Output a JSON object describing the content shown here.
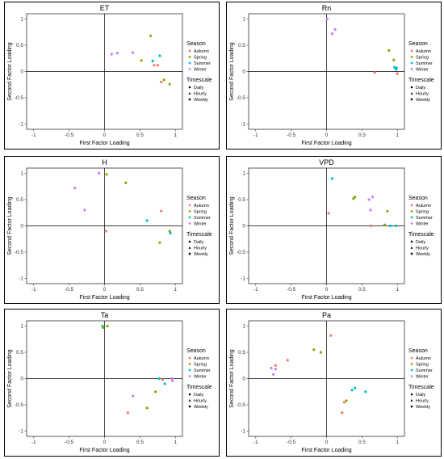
{
  "legend": {
    "season_title": "Season",
    "timescale_title": "Timescale",
    "seasons": [
      {
        "name": "Autumn",
        "color": "#F8766D"
      },
      {
        "name": "Spring",
        "color": "#7CAE00"
      },
      {
        "name": "Summer",
        "color": "#00BFC4"
      },
      {
        "name": "Winter",
        "color": "#C77CFF"
      }
    ],
    "timescales": [
      "Daily",
      "Hourly",
      "Weekly"
    ]
  },
  "chart_data": [
    {
      "type": "scatter",
      "title": "ET",
      "xlabel": "First Factor Loading",
      "ylabel": "Second Factor Loading",
      "xlim": [
        -1.1,
        1.1
      ],
      "ylim": [
        -1.1,
        1.1
      ],
      "xticks": [
        "-1",
        "-0.5",
        "0",
        "0.5",
        "1"
      ],
      "xtick_values": [
        -1,
        -0.5,
        0,
        0.5,
        1
      ],
      "yticks": [
        "-1",
        "-0.5",
        "0",
        "0.5",
        "1"
      ],
      "ytick_values": [
        -1,
        -0.5,
        0,
        0.5,
        1
      ],
      "grid": false,
      "legend_position": "right",
      "points": [
        {
          "x": 0.65,
          "y": 0.68,
          "season": "Spring"
        },
        {
          "x": 0.52,
          "y": 0.21,
          "season": "Spring"
        },
        {
          "x": 0.84,
          "y": -0.16,
          "season": "Spring"
        },
        {
          "x": 0.92,
          "y": -0.24,
          "season": "Spring"
        },
        {
          "x": 0.68,
          "y": 0.2,
          "season": "Summer"
        },
        {
          "x": 0.78,
          "y": 0.3,
          "season": "Summer"
        },
        {
          "x": 0.75,
          "y": 0.12,
          "season": "Autumn"
        },
        {
          "x": 0.7,
          "y": 0.12,
          "season": "Autumn"
        },
        {
          "x": 0.8,
          "y": -0.2,
          "season": "Autumn"
        },
        {
          "x": 0.1,
          "y": 0.33,
          "season": "Winter"
        },
        {
          "x": 0.18,
          "y": 0.35,
          "season": "Winter"
        },
        {
          "x": 0.4,
          "y": 0.36,
          "season": "Winter"
        }
      ]
    },
    {
      "type": "scatter",
      "title": "Rn",
      "xlabel": "First Factor Loading",
      "ylabel": "Second Factor Loading",
      "xlim": [
        -1.1,
        1.1
      ],
      "ylim": [
        -1.1,
        1.1
      ],
      "xticks": [
        "-1",
        "-0.5",
        "0",
        "0.5",
        "1"
      ],
      "xtick_values": [
        -1,
        -0.5,
        0,
        0.5,
        1
      ],
      "yticks": [
        "-1",
        "-0.5",
        "0",
        "0.5",
        "1"
      ],
      "ytick_values": [
        -1,
        -0.5,
        0,
        0.5,
        1
      ],
      "grid": false,
      "legend_position": "right",
      "points": [
        {
          "x": 0.01,
          "y": 1.0,
          "season": "Winter"
        },
        {
          "x": 0.08,
          "y": 0.72,
          "season": "Winter"
        },
        {
          "x": 0.12,
          "y": 0.8,
          "season": "Winter"
        },
        {
          "x": 0.88,
          "y": 0.4,
          "season": "Spring"
        },
        {
          "x": 0.95,
          "y": 0.22,
          "season": "Spring"
        },
        {
          "x": 0.96,
          "y": 0.08,
          "season": "Summer"
        },
        {
          "x": 0.98,
          "y": 0.04,
          "season": "Summer"
        },
        {
          "x": 0.99,
          "y": 0.07,
          "season": "Summer"
        },
        {
          "x": 0.68,
          "y": -0.02,
          "season": "Autumn"
        },
        {
          "x": 1.0,
          "y": -0.04,
          "season": "Autumn"
        }
      ]
    },
    {
      "type": "scatter",
      "title": "H",
      "xlabel": "First Factor Loading",
      "ylabel": "Second Factor Loading",
      "xlim": [
        -1.1,
        1.1
      ],
      "ylim": [
        -1.1,
        1.1
      ],
      "xticks": [
        "-1",
        "-0.5",
        "0",
        "0.5",
        "1"
      ],
      "xtick_values": [
        -1,
        -0.5,
        0,
        0.5,
        1
      ],
      "yticks": [
        "-1",
        "-0.5",
        "0",
        "0.5",
        "1"
      ],
      "ytick_values": [
        -1,
        -0.5,
        0,
        0.5,
        1
      ],
      "grid": false,
      "legend_position": "right",
      "points": [
        {
          "x": -0.08,
          "y": 1.0,
          "season": "Winter"
        },
        {
          "x": -0.42,
          "y": 0.72,
          "season": "Winter"
        },
        {
          "x": -0.28,
          "y": 0.3,
          "season": "Winter"
        },
        {
          "x": 0.03,
          "y": 0.98,
          "season": "Spring"
        },
        {
          "x": 0.3,
          "y": 0.82,
          "season": "Spring"
        },
        {
          "x": 0.78,
          "y": -0.32,
          "season": "Spring"
        },
        {
          "x": 0.92,
          "y": -0.1,
          "season": "Spring"
        },
        {
          "x": 0.6,
          "y": 0.1,
          "season": "Summer"
        },
        {
          "x": 0.93,
          "y": -0.14,
          "season": "Summer"
        },
        {
          "x": 0.8,
          "y": 0.28,
          "season": "Autumn"
        },
        {
          "x": 0.02,
          "y": -0.1,
          "season": "Autumn"
        }
      ]
    },
    {
      "type": "scatter",
      "title": "VPD",
      "xlabel": "First Factor Loading",
      "ylabel": "Second Factor Loading",
      "xlim": [
        -1.1,
        1.1
      ],
      "ylim": [
        -1.1,
        1.1
      ],
      "xticks": [
        "-1",
        "-0.5",
        "0",
        "0.5",
        "1"
      ],
      "xtick_values": [
        -1,
        -0.5,
        0,
        0.5,
        1
      ],
      "yticks": [
        "-1",
        "-0.5",
        "0",
        "0.5",
        "1"
      ],
      "ytick_values": [
        -1,
        -0.5,
        0,
        0.5,
        1
      ],
      "grid": false,
      "legend_position": "right",
      "points": [
        {
          "x": 0.08,
          "y": 0.9,
          "season": "Summer"
        },
        {
          "x": 0.38,
          "y": 0.52,
          "season": "Spring"
        },
        {
          "x": 0.4,
          "y": 0.55,
          "season": "Spring"
        },
        {
          "x": 0.82,
          "y": 0.02,
          "season": "Spring"
        },
        {
          "x": 0.86,
          "y": 0.28,
          "season": "Spring"
        },
        {
          "x": 0.6,
          "y": 0.5,
          "season": "Winter"
        },
        {
          "x": 0.65,
          "y": 0.55,
          "season": "Winter"
        },
        {
          "x": 0.62,
          "y": 0.3,
          "season": "Winter"
        },
        {
          "x": 0.03,
          "y": 0.24,
          "season": "Autumn"
        },
        {
          "x": 0.63,
          "y": 0.0,
          "season": "Autumn"
        },
        {
          "x": 0.9,
          "y": 0.0,
          "season": "Summer"
        },
        {
          "x": 0.98,
          "y": 0.0,
          "season": "Summer"
        }
      ]
    },
    {
      "type": "scatter",
      "title": "Ta",
      "xlabel": "First Factor Loading",
      "ylabel": "Second Factor Loading",
      "xlim": [
        -1.1,
        1.1
      ],
      "ylim": [
        -1.1,
        1.1
      ],
      "xticks": [
        "-1",
        "-0.5",
        "0",
        "0.5",
        "1"
      ],
      "xtick_values": [
        -1,
        -0.5,
        0,
        0.5,
        1
      ],
      "yticks": [
        "-1",
        "-0.5",
        "0",
        "0.5",
        "1"
      ],
      "ytick_values": [
        -1,
        -0.5,
        0,
        0.5,
        1
      ],
      "grid": false,
      "legend_position": "right",
      "points": [
        {
          "x": -0.03,
          "y": 1.0,
          "season": "Summer"
        },
        {
          "x": -0.02,
          "y": 0.97,
          "season": "Spring"
        },
        {
          "x": 0.04,
          "y": 1.0,
          "season": "Spring"
        },
        {
          "x": 0.72,
          "y": -0.25,
          "season": "Spring"
        },
        {
          "x": 0.6,
          "y": -0.56,
          "season": "Spring"
        },
        {
          "x": 0.77,
          "y": 0.0,
          "season": "Summer"
        },
        {
          "x": 0.85,
          "y": -0.1,
          "season": "Summer"
        },
        {
          "x": 0.95,
          "y": 0.0,
          "season": "Winter"
        },
        {
          "x": 0.96,
          "y": -0.04,
          "season": "Winter"
        },
        {
          "x": 0.4,
          "y": -0.33,
          "season": "Winter"
        },
        {
          "x": 0.33,
          "y": -0.65,
          "season": "Autumn"
        },
        {
          "x": 0.82,
          "y": -0.02,
          "season": "Autumn"
        }
      ]
    },
    {
      "type": "scatter",
      "title": "Pa",
      "xlabel": "First Factor Loading",
      "ylabel": "Second Factor Loading",
      "xlim": [
        -1.1,
        1.1
      ],
      "ylim": [
        -1.1,
        1.1
      ],
      "xticks": [
        "-1",
        "-0.5",
        "0",
        "0.5",
        "1"
      ],
      "xtick_values": [
        -1,
        -0.5,
        0,
        0.5,
        1
      ],
      "yticks": [
        "-1",
        "-0.5",
        "0",
        "0.5",
        "1"
      ],
      "ytick_values": [
        -1,
        -0.5,
        0,
        0.5,
        1
      ],
      "grid": false,
      "legend_position": "right",
      "points": [
        {
          "x": 0.06,
          "y": 0.82,
          "season": "Autumn"
        },
        {
          "x": -0.55,
          "y": 0.35,
          "season": "Autumn"
        },
        {
          "x": -0.72,
          "y": 0.25,
          "season": "Autumn"
        },
        {
          "x": 0.25,
          "y": -0.45,
          "season": "Autumn"
        },
        {
          "x": 0.22,
          "y": -0.65,
          "season": "Autumn"
        },
        {
          "x": -0.18,
          "y": 0.55,
          "season": "Spring"
        },
        {
          "x": -0.08,
          "y": 0.5,
          "season": "Spring"
        },
        {
          "x": 0.28,
          "y": -0.42,
          "season": "Spring"
        },
        {
          "x": 0.36,
          "y": -0.22,
          "season": "Summer"
        },
        {
          "x": 0.4,
          "y": -0.18,
          "season": "Summer"
        },
        {
          "x": 0.55,
          "y": -0.25,
          "season": "Summer"
        },
        {
          "x": -0.78,
          "y": 0.2,
          "season": "Winter"
        },
        {
          "x": -0.75,
          "y": 0.08,
          "season": "Winter"
        },
        {
          "x": -0.72,
          "y": 0.18,
          "season": "Winter"
        }
      ]
    }
  ]
}
